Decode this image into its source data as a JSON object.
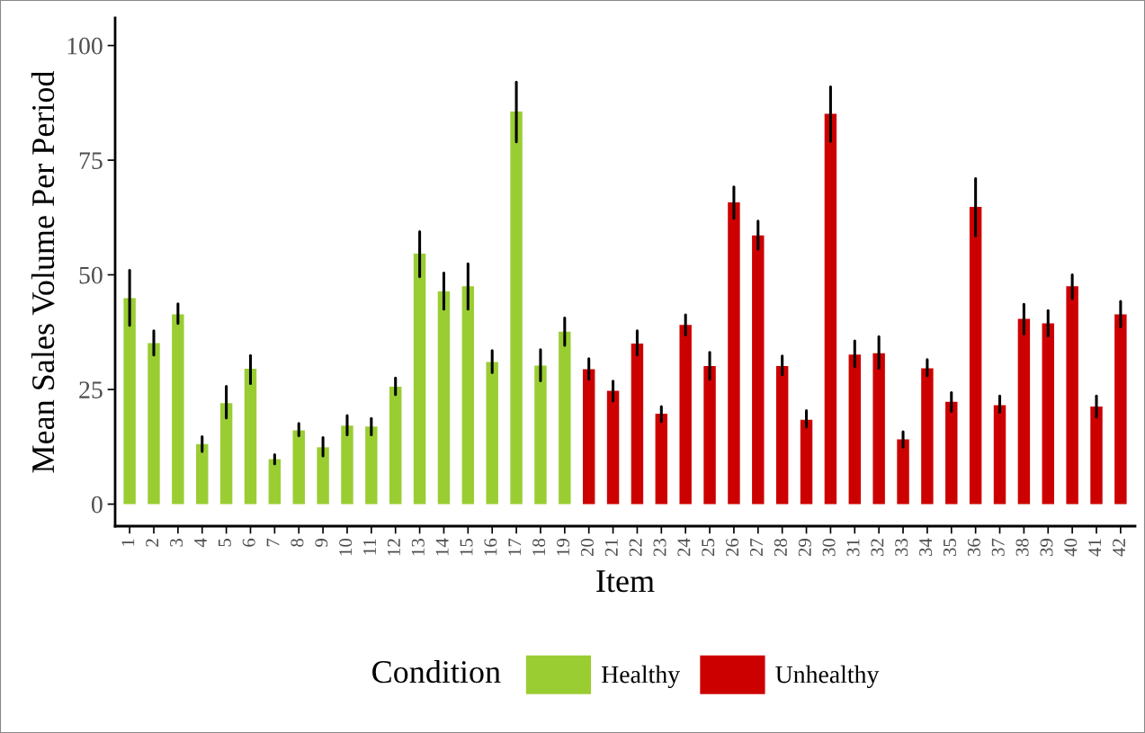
{
  "chart_data": {
    "type": "bar",
    "xlabel": "Item",
    "ylabel": "Mean Sales Volume Per Period",
    "legend_title": "Condition",
    "categories": [
      "1",
      "2",
      "3",
      "4",
      "5",
      "6",
      "7",
      "8",
      "9",
      "10",
      "11",
      "12",
      "13",
      "14",
      "15",
      "16",
      "17",
      "18",
      "19",
      "20",
      "21",
      "22",
      "23",
      "24",
      "25",
      "26",
      "27",
      "28",
      "29",
      "30",
      "31",
      "32",
      "33",
      "34",
      "35",
      "36",
      "37",
      "38",
      "39",
      "40",
      "41",
      "42"
    ],
    "series": [
      {
        "name": "Healthy",
        "color": "#9acd32",
        "values": [
          44.9,
          35.1,
          41.4,
          13.1,
          22.0,
          29.5,
          9.8,
          16.1,
          12.4,
          17.1,
          16.9,
          25.6,
          54.6,
          46.4,
          47.5,
          31.0,
          85.6,
          30.2,
          37.6,
          null,
          null,
          null,
          null,
          null,
          null,
          null,
          null,
          null,
          null,
          null,
          null,
          null,
          null,
          null,
          null,
          null,
          null,
          null,
          null,
          null,
          null,
          null
        ],
        "errors": [
          [
            39.0,
            51.0
          ],
          [
            32.5,
            37.8
          ],
          [
            39.4,
            43.7
          ],
          [
            11.5,
            14.7
          ],
          [
            18.8,
            25.7
          ],
          [
            26.3,
            32.4
          ],
          [
            8.8,
            10.8
          ],
          [
            14.9,
            17.6
          ],
          [
            10.5,
            14.5
          ],
          [
            15.1,
            19.3
          ],
          [
            15.1,
            18.7
          ],
          [
            23.9,
            27.5
          ],
          [
            49.6,
            59.4
          ],
          [
            42.5,
            50.4
          ],
          [
            42.5,
            52.4
          ],
          [
            28.7,
            33.5
          ],
          [
            79.0,
            92.0
          ],
          [
            26.9,
            33.7
          ],
          [
            34.6,
            40.6
          ],
          null,
          null,
          null,
          null,
          null,
          null,
          null,
          null,
          null,
          null,
          null,
          null,
          null,
          null,
          null,
          null,
          null,
          null,
          null,
          null,
          null,
          null,
          null
        ]
      },
      {
        "name": "Unhealthy",
        "color": "#cd0000",
        "values": [
          null,
          null,
          null,
          null,
          null,
          null,
          null,
          null,
          null,
          null,
          null,
          null,
          null,
          null,
          null,
          null,
          null,
          null,
          null,
          29.4,
          24.7,
          35.0,
          19.7,
          39.1,
          30.1,
          65.8,
          58.6,
          30.1,
          18.4,
          85.1,
          32.6,
          32.9,
          14.1,
          29.6,
          22.3,
          64.8,
          21.6,
          40.4,
          39.4,
          47.5,
          21.3,
          41.4
        ],
        "errors": [
          null,
          null,
          null,
          null,
          null,
          null,
          null,
          null,
          null,
          null,
          null,
          null,
          null,
          null,
          null,
          null,
          null,
          null,
          null,
          [
            27.2,
            31.7
          ],
          [
            22.5,
            26.8
          ],
          [
            32.5,
            37.8
          ],
          [
            18.0,
            21.3
          ],
          [
            36.9,
            41.3
          ],
          [
            27.2,
            33.1
          ],
          [
            62.3,
            69.2
          ],
          [
            55.6,
            61.7
          ],
          [
            28.2,
            32.3
          ],
          [
            16.8,
            20.4
          ],
          [
            79.1,
            91.0
          ],
          [
            30.0,
            35.6
          ],
          [
            29.6,
            36.5
          ],
          [
            12.4,
            15.8
          ],
          [
            28.0,
            31.5
          ],
          [
            20.2,
            24.3
          ],
          [
            58.5,
            71.0
          ],
          [
            20.0,
            23.6
          ],
          [
            37.1,
            43.6
          ],
          [
            36.7,
            42.2
          ],
          [
            44.8,
            50.0
          ],
          [
            19.0,
            23.6
          ],
          [
            38.7,
            44.2
          ]
        ]
      }
    ],
    "ylim": [
      -4.8,
      106
    ],
    "yticks": [
      0,
      25,
      50,
      75,
      100
    ],
    "grid": false,
    "legend": "bottom"
  }
}
